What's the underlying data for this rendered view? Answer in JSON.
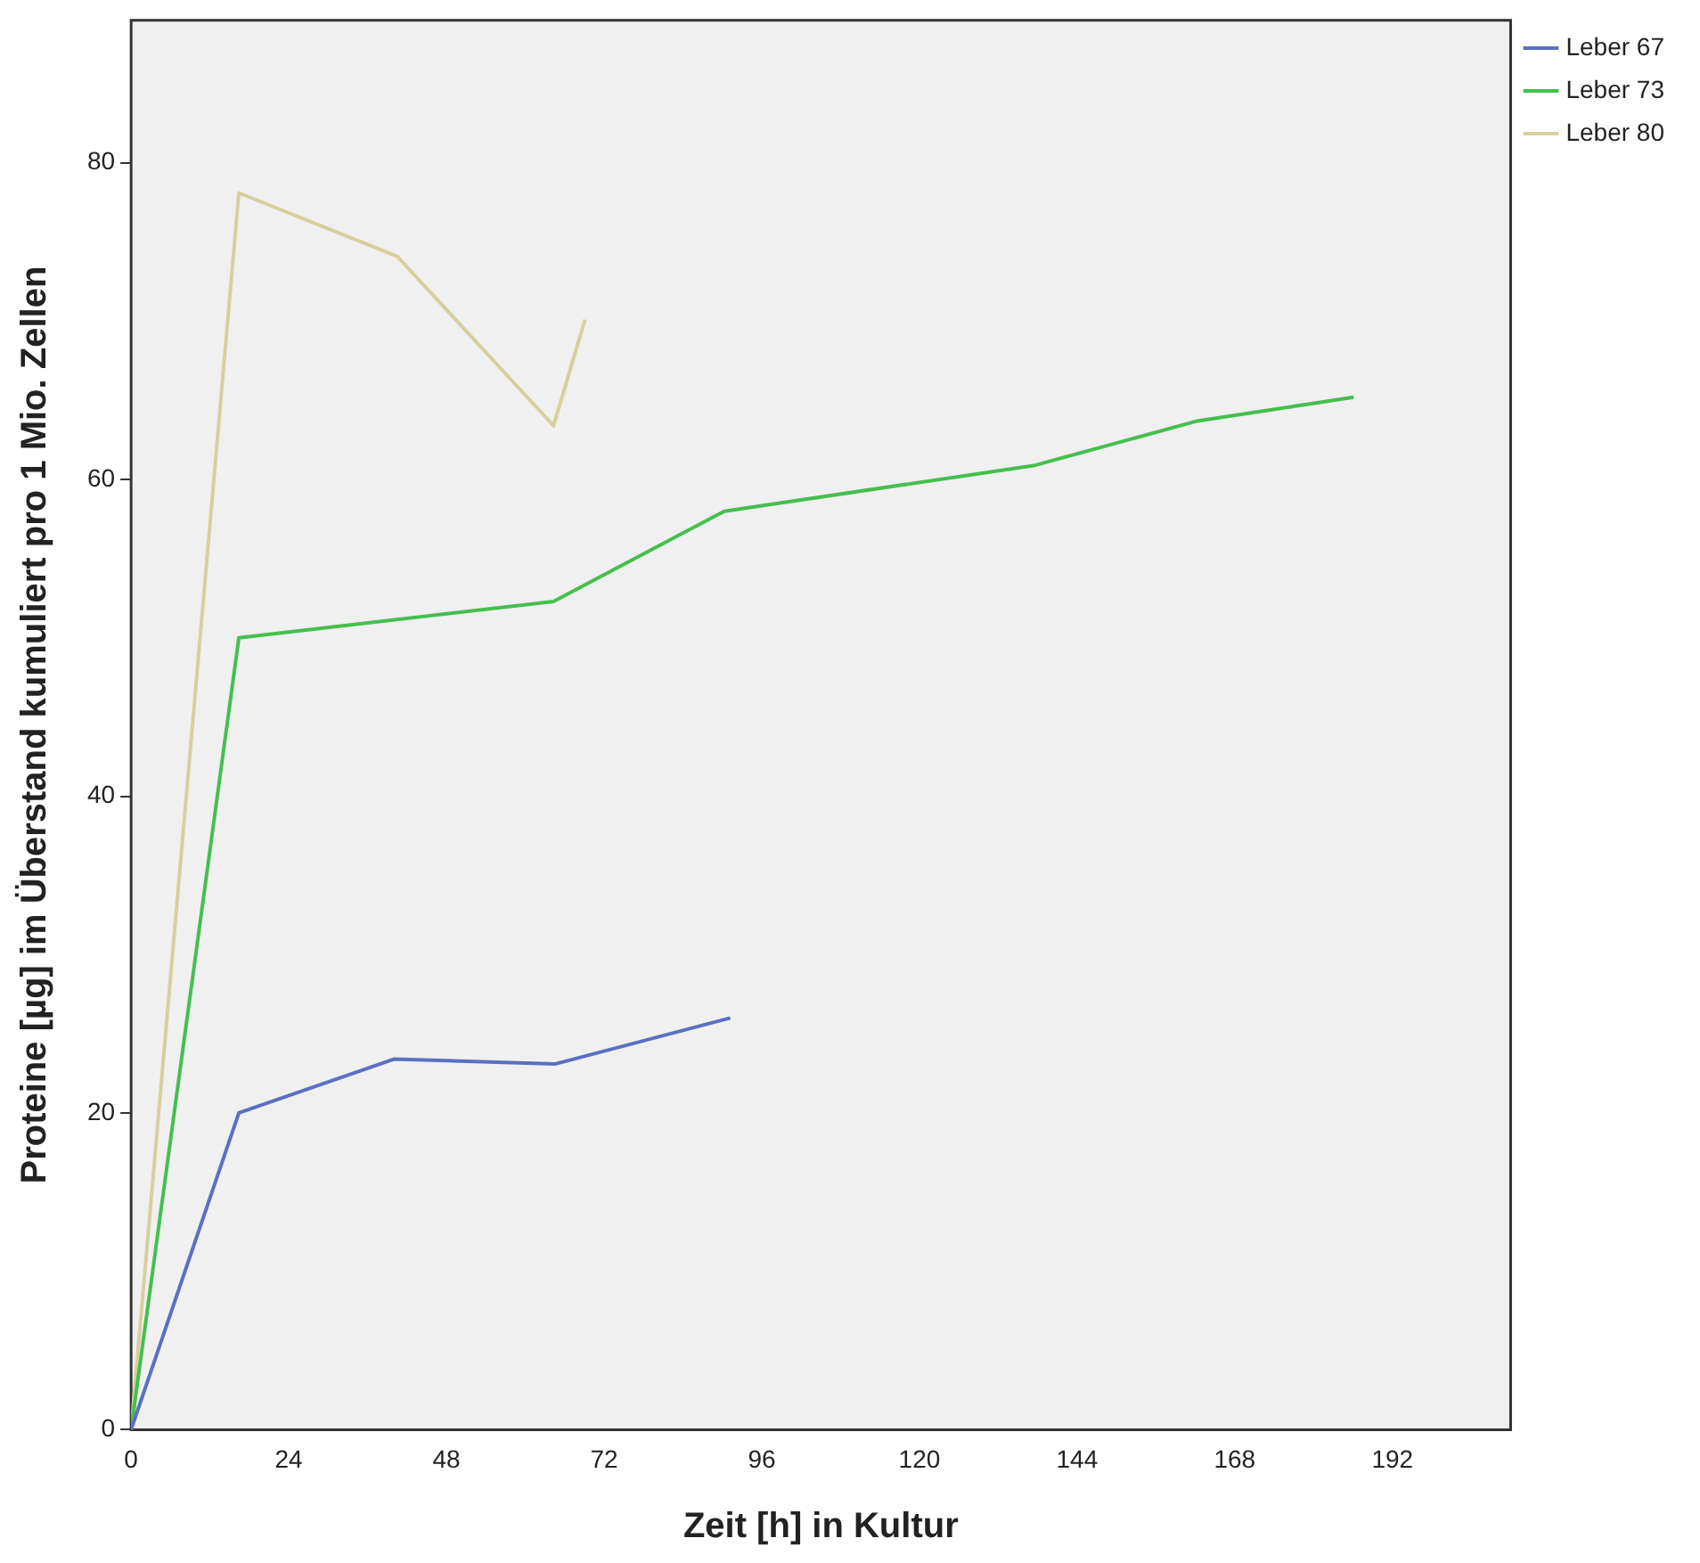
{
  "chart_data": {
    "type": "line",
    "xlabel": "Zeit [h] in Kultur",
    "ylabel": "Proteine [µg] im Überstand kumuliert pro 1 Mio. Zellen",
    "xlim": [
      0,
      210
    ],
    "xticks": [
      0,
      24,
      48,
      72,
      96,
      120,
      144,
      168,
      192
    ],
    "ylim": [
      0,
      89
    ],
    "yticks": [
      0,
      20,
      40,
      60,
      80
    ],
    "grid": false,
    "legend": "top right",
    "marker": "none",
    "line_style": "solid",
    "series": [
      {
        "name": "Leber 67",
        "color": "#5b6fc2",
        "x": [
          0,
          16.4,
          40,
          64.6,
          91.2
        ],
        "values": [
          0,
          20,
          23.4,
          23.1,
          26
        ]
      },
      {
        "name": "Leber 73",
        "color": "#45bf4f",
        "x": [
          0,
          16.4,
          64.3,
          90.3,
          137.6,
          162.3,
          186.1
        ],
        "values": [
          0,
          50,
          52.3,
          58,
          60.9,
          63.7,
          65.2
        ]
      },
      {
        "name": "Leber 80",
        "color": "#d8cf9e",
        "x": [
          0,
          16.4,
          40.5,
          64.3,
          69.1
        ],
        "values": [
          0,
          78.1,
          74.1,
          63.4,
          70.1
        ]
      }
    ]
  }
}
